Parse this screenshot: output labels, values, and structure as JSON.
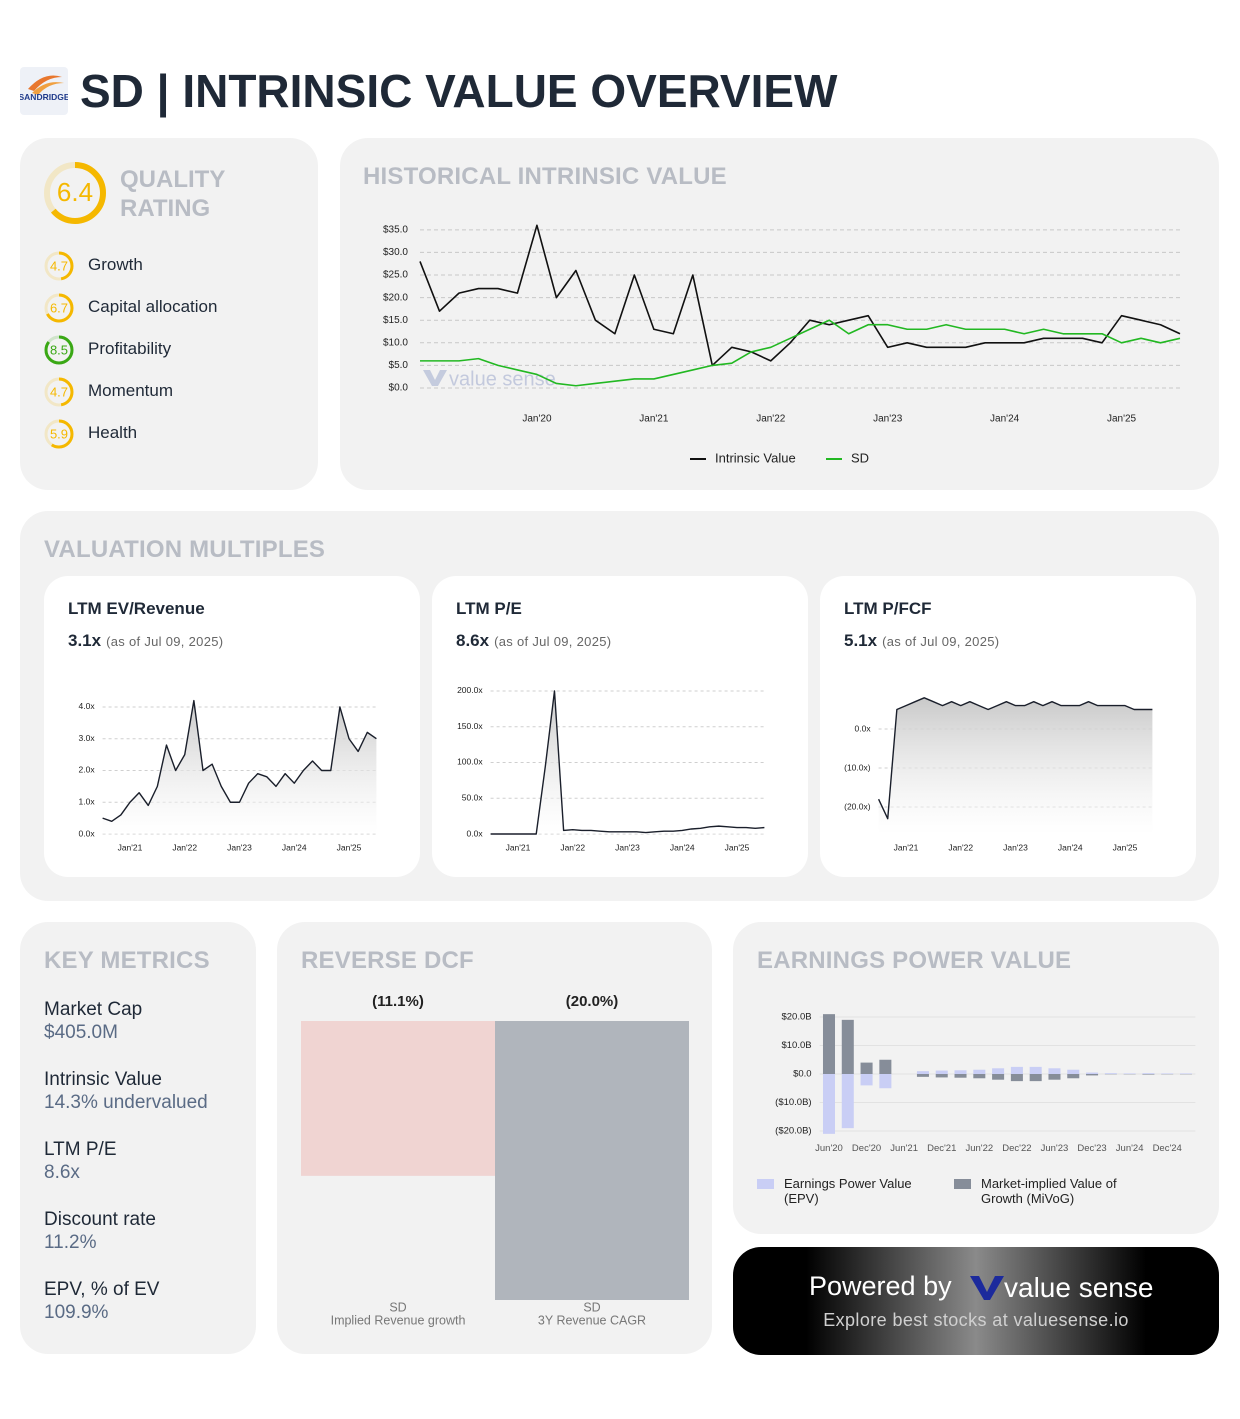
{
  "header": {
    "title": "SD | INTRINSIC VALUE OVERVIEW",
    "logo_text": "SANDRIDGE"
  },
  "quality": {
    "title": "QUALITY RATING",
    "score": 6.4,
    "color": "#f5b800",
    "items": [
      {
        "name": "Growth",
        "score": 4.7,
        "color": "#f5b800"
      },
      {
        "name": "Capital allocation",
        "score": 6.7,
        "color": "#f5b800"
      },
      {
        "name": "Profitability",
        "score": 8.5,
        "color": "#3aa815"
      },
      {
        "name": "Momentum",
        "score": 4.7,
        "color": "#f5b800"
      },
      {
        "name": "Health",
        "score": 5.9,
        "color": "#f5b800"
      }
    ]
  },
  "valuation_multiples": {
    "title": "VALUATION MULTIPLES"
  },
  "key_metrics": {
    "title": "KEY METRICS",
    "items": [
      {
        "label": "Market Cap",
        "value": "$405.0M"
      },
      {
        "label": "Intrinsic Value",
        "value": "14.3% undervalued"
      },
      {
        "label": "LTM P/E",
        "value": "8.6x"
      },
      {
        "label": "Discount rate",
        "value": "11.2%"
      },
      {
        "label": "EPV, % of EV",
        "value": "109.9%"
      }
    ]
  },
  "footer": {
    "powered_by": "Powered by",
    "brand": "value sense",
    "tagline": "Explore best stocks at valuesense.io"
  },
  "chart_data": [
    {
      "type": "line",
      "title": "HISTORICAL INTRINSIC VALUE",
      "watermark": "value sense",
      "categories": [
        null,
        null,
        null,
        null,
        null,
        null,
        "Jan'20",
        null,
        null,
        null,
        null,
        null,
        "Jan'21",
        null,
        null,
        null,
        null,
        null,
        "Jan'22",
        null,
        null,
        null,
        null,
        null,
        "Jan'23",
        null,
        null,
        null,
        null,
        null,
        "Jan'24",
        null,
        null,
        null,
        null,
        null,
        "Jan'25",
        null,
        null,
        null
      ],
      "series": [
        {
          "name": "Intrinsic Value",
          "color": "#111111",
          "values": [
            28,
            17,
            21,
            22,
            22,
            21,
            36,
            20,
            26,
            15,
            12,
            25,
            13,
            12,
            25,
            5,
            9,
            8,
            6,
            10,
            15,
            14,
            15,
            16,
            9,
            10,
            9,
            9,
            9,
            10,
            10,
            10,
            11,
            11,
            11,
            10,
            16,
            15,
            14,
            12
          ]
        },
        {
          "name": "SD",
          "color": "#22b822",
          "values": [
            6,
            6,
            6,
            6.5,
            5,
            4,
            3,
            1,
            0.5,
            1,
            1.5,
            2,
            2,
            3,
            4,
            5,
            5.5,
            8,
            9,
            11,
            13,
            15,
            12,
            14,
            14,
            13,
            13,
            14,
            13,
            13,
            13,
            12,
            13,
            12,
            12,
            12,
            10,
            11,
            10,
            11
          ]
        }
      ],
      "ylim": [
        0,
        37
      ],
      "yticks": [
        {
          "value": 0,
          "label": "$0.0"
        },
        {
          "value": 5,
          "label": "$5.0"
        },
        {
          "value": 10,
          "label": "$10.0"
        },
        {
          "value": 15,
          "label": "$15.0"
        },
        {
          "value": 20,
          "label": "$20.0"
        },
        {
          "value": 25,
          "label": "$25.0"
        },
        {
          "value": 30,
          "label": "$30.0"
        },
        {
          "value": 35,
          "label": "$35.0"
        }
      ],
      "grid": true,
      "legend": "bottom"
    },
    {
      "type": "area",
      "title": "LTM EV/Revenue",
      "current": "3.1x",
      "as_of": "(as of Jul 09, 2025)",
      "color": "#1a1f2b",
      "categories": [
        null,
        null,
        null,
        "Jan'21",
        null,
        null,
        null,
        null,
        null,
        "Jan'22",
        null,
        null,
        null,
        null,
        null,
        "Jan'23",
        null,
        null,
        null,
        null,
        null,
        "Jan'24",
        null,
        null,
        null,
        null,
        null,
        "Jan'25",
        null,
        null,
        null
      ],
      "values": [
        0.5,
        0.4,
        0.6,
        1.0,
        1.3,
        0.9,
        1.5,
        2.8,
        2.0,
        2.5,
        4.2,
        2.0,
        2.2,
        1.5,
        1.0,
        1.0,
        1.6,
        1.9,
        1.8,
        1.5,
        1.9,
        1.6,
        2.0,
        2.3,
        2.0,
        2.0,
        4.0,
        3.0,
        2.6,
        3.2,
        3.0
      ],
      "ylim": [
        0,
        4.5
      ],
      "yticks": [
        {
          "value": 0,
          "label": "0.0x"
        },
        {
          "value": 1,
          "label": "1.0x"
        },
        {
          "value": 2,
          "label": "2.0x"
        },
        {
          "value": 3,
          "label": "3.0x"
        },
        {
          "value": 4,
          "label": "4.0x"
        }
      ],
      "grid": true
    },
    {
      "type": "area",
      "title": "LTM P/E",
      "current": "8.6x",
      "as_of": "(as of Jul 09, 2025)",
      "color": "#1a1f2b",
      "categories": [
        null,
        null,
        null,
        "Jan'21",
        null,
        null,
        null,
        null,
        null,
        "Jan'22",
        null,
        null,
        null,
        null,
        null,
        "Jan'23",
        null,
        null,
        null,
        null,
        null,
        "Jan'24",
        null,
        null,
        null,
        null,
        null,
        "Jan'25",
        null,
        null,
        null
      ],
      "values": [
        0,
        0,
        0,
        0,
        0,
        0,
        95,
        200,
        5,
        6,
        5,
        5,
        4,
        3,
        3,
        3,
        3,
        2,
        3,
        4,
        4,
        5,
        7,
        8,
        10,
        11,
        10,
        9,
        9,
        8,
        9
      ],
      "ylim": [
        0,
        205
      ],
      "yticks": [
        {
          "value": 0,
          "label": "0.0x"
        },
        {
          "value": 50,
          "label": "50.0x"
        },
        {
          "value": 100,
          "label": "100.0x"
        },
        {
          "value": 150,
          "label": "150.0x"
        },
        {
          "value": 200,
          "label": "200.0x"
        }
      ],
      "grid": true
    },
    {
      "type": "area",
      "title": "LTM P/FCF",
      "current": "5.1x",
      "as_of": "(as of Jul 09, 2025)",
      "color": "#1a1f2b",
      "categories": [
        null,
        null,
        null,
        "Jan'21",
        null,
        null,
        null,
        null,
        null,
        "Jan'22",
        null,
        null,
        null,
        null,
        null,
        "Jan'23",
        null,
        null,
        null,
        null,
        null,
        "Jan'24",
        null,
        null,
        null,
        null,
        null,
        "Jan'25",
        null,
        null,
        null
      ],
      "values": [
        -18,
        -23,
        5,
        6,
        7,
        8,
        7,
        6,
        7,
        6,
        7,
        6,
        5,
        6,
        7,
        6,
        6,
        7,
        6,
        7,
        6,
        6,
        6,
        7,
        6,
        6,
        6,
        6,
        5,
        5,
        5
      ],
      "ylim": [
        -27,
        10
      ],
      "yticks": [
        {
          "value": 0,
          "label": "0.0x"
        },
        {
          "value": -10,
          "label": "(10.0x)"
        },
        {
          "value": -20,
          "label": "(20.0x)"
        }
      ],
      "grid": true
    },
    {
      "type": "bar",
      "title": "REVERSE DCF",
      "categories": [
        "SD",
        "SD"
      ],
      "sublabels": [
        "Implied Revenue growth",
        "3Y Revenue CAGR"
      ],
      "values": [
        -11.1,
        -20.0
      ],
      "value_labels": [
        "(11.1%)",
        "(20.0%)"
      ],
      "colors": [
        "#f0d4d2",
        "#b0b5bc"
      ],
      "ylim": [
        -20,
        0
      ]
    },
    {
      "type": "bar",
      "title": "EARNINGS POWER VALUE",
      "categories": [
        "Jun'20",
        null,
        "Dec'20",
        null,
        "Jun'21",
        null,
        "Dec'21",
        null,
        "Jun'22",
        null,
        "Dec'22",
        null,
        "Jun'23",
        null,
        "Dec'23",
        null,
        "Jun'24",
        null,
        "Dec'24",
        null
      ],
      "series": [
        {
          "name": "Earnings Power Value (EPV)",
          "color": "#c9cef5",
          "values": [
            -21,
            -19,
            -4,
            -5,
            null,
            1,
            1.2,
            1.3,
            1.5,
            2,
            2.5,
            2.5,
            2,
            1.5,
            0.5,
            0.3,
            0.2,
            0.3,
            0.2,
            0.2
          ]
        },
        {
          "name": "Market-implied Value of Growth (MiVoG)",
          "color": "#868d99",
          "values": [
            21,
            19,
            4,
            5,
            null,
            -1,
            -1.2,
            -1.3,
            -1.5,
            -2,
            -2.5,
            -2.5,
            -2,
            -1.5,
            -0.5,
            -0.1,
            -0.1,
            -0.2,
            -0.1,
            -0.1
          ]
        }
      ],
      "ylim": [
        -22,
        22
      ],
      "yticks": [
        {
          "value": 20,
          "label": "$20.0B"
        },
        {
          "value": 10,
          "label": "$10.0B"
        },
        {
          "value": 0,
          "label": "$0.0"
        },
        {
          "value": -10,
          "label": "($10.0B)"
        },
        {
          "value": -20,
          "label": "($20.0B)"
        }
      ],
      "grid": true,
      "legend": "bottom"
    }
  ]
}
